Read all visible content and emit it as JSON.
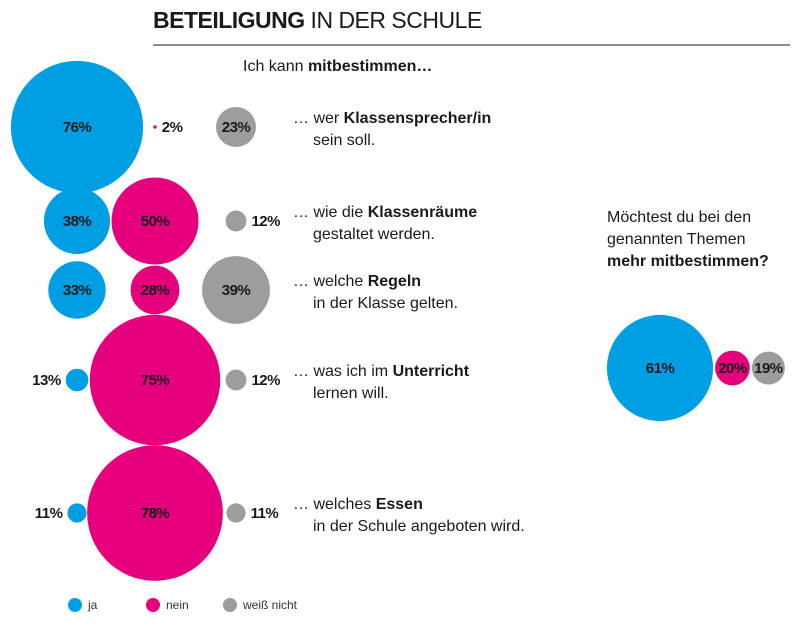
{
  "chart_data": [
    {
      "type": "bubble",
      "title": {
        "bold": "BETEILIGUNG",
        "rest": " IN DER SCHULE"
      },
      "subtitle": {
        "text": "Ich kann ",
        "bold": "mitbestimmen…"
      },
      "categories": [
        {
          "text": "… wer ",
          "bold": "Klassensprecher/in",
          "rest": "sein soll."
        },
        {
          "text": "… wie die ",
          "bold": "Klassenräume",
          "rest": "gestaltet werden."
        },
        {
          "text": "… welche ",
          "bold": "Regeln",
          "rest": "in der Klasse gelten."
        },
        {
          "text": "… was ich im ",
          "bold": "Unterricht",
          "rest": "lernen will."
        },
        {
          "text": "… welches ",
          "bold": "Essen",
          "rest": "in der Schule angeboten wird."
        }
      ],
      "series": [
        {
          "name": "ja",
          "color": "#009fe3",
          "values": [
            76,
            38,
            33,
            13,
            11
          ],
          "value_labels": [
            "76%",
            "38%",
            "33%",
            "13%",
            "11%"
          ]
        },
        {
          "name": "nein",
          "color": "#e6007e",
          "values": [
            2,
            50,
            28,
            75,
            78
          ],
          "value_labels": [
            "2%",
            "50%",
            "28%",
            "75%",
            "78%"
          ]
        },
        {
          "name": "weiß nicht",
          "color": "#9d9d9d",
          "values": [
            23,
            12,
            39,
            12,
            11
          ],
          "value_labels": [
            "23%",
            "12%",
            "39%",
            "12%",
            "11%"
          ]
        }
      ]
    },
    {
      "type": "bubble-row",
      "title": {
        "lines": [
          "Möchtest du bei den",
          "genannten Themen"
        ],
        "bold": "mehr mitbestimmen?"
      },
      "series": [
        {
          "color": "#009fe3",
          "values": [
            61
          ],
          "value_labels": [
            "61%"
          ]
        },
        {
          "color": "#e6007e",
          "values": [
            20
          ],
          "value_labels": [
            "20%"
          ]
        },
        {
          "color": "#9d9d9d",
          "values": [
            19
          ],
          "value_labels": [
            "19%"
          ]
        }
      ]
    }
  ]
}
